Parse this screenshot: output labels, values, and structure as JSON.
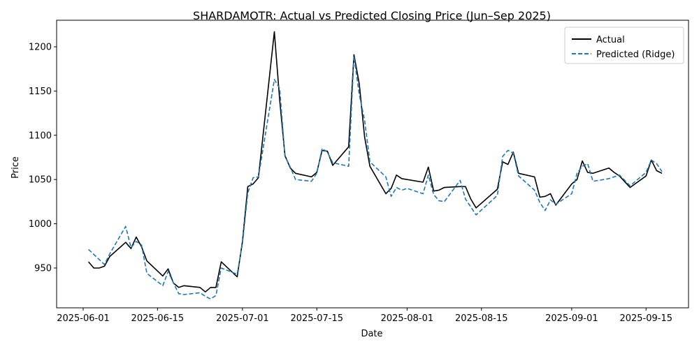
{
  "chart_data": {
    "type": "line",
    "title": "SHARDAMOTR: Actual vs Predicted Closing Price (Jun–Sep 2025)",
    "xlabel": "Date",
    "ylabel": "Price",
    "xlim": [
      "2025-05-27",
      "2025-09-23"
    ],
    "ylim": [
      905,
      1230
    ],
    "x_ticks": [
      "2025-06-01",
      "2025-06-15",
      "2025-07-01",
      "2025-07-15",
      "2025-08-01",
      "2025-08-15",
      "2025-09-01",
      "2025-09-15"
    ],
    "y_ticks": [
      950,
      1000,
      1050,
      1100,
      1150,
      1200
    ],
    "grid": false,
    "legend_position": "top-right",
    "series": [
      {
        "name": "Actual",
        "color": "#000000",
        "style": "solid",
        "points": [
          [
            "2025-06-02",
            957
          ],
          [
            "2025-06-03",
            950
          ],
          [
            "2025-06-04",
            950
          ],
          [
            "2025-06-05",
            952
          ],
          [
            "2025-06-06",
            963
          ],
          [
            "2025-06-09",
            979
          ],
          [
            "2025-06-10",
            972
          ],
          [
            "2025-06-11",
            985
          ],
          [
            "2025-06-12",
            974
          ],
          [
            "2025-06-13",
            958
          ],
          [
            "2025-06-16",
            941
          ],
          [
            "2025-06-17",
            949
          ],
          [
            "2025-06-18",
            933
          ],
          [
            "2025-06-19",
            928
          ],
          [
            "2025-06-20",
            930
          ],
          [
            "2025-06-23",
            928
          ],
          [
            "2025-06-24",
            923
          ],
          [
            "2025-06-25",
            928
          ],
          [
            "2025-06-26",
            928
          ],
          [
            "2025-06-27",
            957
          ],
          [
            "2025-06-30",
            940
          ],
          [
            "2025-07-01",
            980
          ],
          [
            "2025-07-02",
            1042
          ],
          [
            "2025-07-03",
            1045
          ],
          [
            "2025-07-04",
            1052
          ],
          [
            "2025-07-07",
            1217
          ],
          [
            "2025-07-08",
            1140
          ],
          [
            "2025-07-09",
            1077
          ],
          [
            "2025-07-10",
            1063
          ],
          [
            "2025-07-11",
            1057
          ],
          [
            "2025-07-14",
            1053
          ],
          [
            "2025-07-15",
            1058
          ],
          [
            "2025-07-16",
            1083
          ],
          [
            "2025-07-17",
            1082
          ],
          [
            "2025-07-18",
            1066
          ],
          [
            "2025-07-21",
            1087
          ],
          [
            "2025-07-22",
            1191
          ],
          [
            "2025-07-23",
            1158
          ],
          [
            "2025-07-24",
            1098
          ],
          [
            "2025-07-25",
            1065
          ],
          [
            "2025-07-28",
            1034
          ],
          [
            "2025-07-29",
            1040
          ],
          [
            "2025-07-30",
            1055
          ],
          [
            "2025-07-31",
            1051
          ],
          [
            "2025-08-04",
            1047
          ],
          [
            "2025-08-05",
            1064
          ],
          [
            "2025-08-06",
            1037
          ],
          [
            "2025-08-07",
            1038
          ],
          [
            "2025-08-08",
            1041
          ],
          [
            "2025-08-11",
            1042
          ],
          [
            "2025-08-12",
            1042
          ],
          [
            "2025-08-13",
            1028
          ],
          [
            "2025-08-14",
            1018
          ],
          [
            "2025-08-18",
            1039
          ],
          [
            "2025-08-19",
            1070
          ],
          [
            "2025-08-20",
            1067
          ],
          [
            "2025-08-21",
            1081
          ],
          [
            "2025-08-22",
            1057
          ],
          [
            "2025-08-25",
            1053
          ],
          [
            "2025-08-26",
            1030
          ],
          [
            "2025-08-27",
            1031
          ],
          [
            "2025-08-28",
            1034
          ],
          [
            "2025-08-29",
            1021
          ],
          [
            "2025-09-01",
            1045
          ],
          [
            "2025-09-02",
            1050
          ],
          [
            "2025-09-03",
            1071
          ],
          [
            "2025-09-04",
            1058
          ],
          [
            "2025-09-05",
            1057
          ],
          [
            "2025-09-08",
            1063
          ],
          [
            "2025-09-09",
            1058
          ],
          [
            "2025-09-10",
            1054
          ],
          [
            "2025-09-12",
            1041
          ],
          [
            "2025-09-15",
            1054
          ],
          [
            "2025-09-16",
            1072
          ],
          [
            "2025-09-17",
            1060
          ],
          [
            "2025-09-18",
            1057
          ]
        ]
      },
      {
        "name": "Predicted (Ridge)",
        "color": "#1f77b4",
        "style": "dashed",
        "points": [
          [
            "2025-06-02",
            971
          ],
          [
            "2025-06-05",
            954
          ],
          [
            "2025-06-06",
            966
          ],
          [
            "2025-06-09",
            997
          ],
          [
            "2025-06-10",
            973
          ],
          [
            "2025-06-11",
            980
          ],
          [
            "2025-06-12",
            976
          ],
          [
            "2025-06-13",
            944
          ],
          [
            "2025-06-16",
            930
          ],
          [
            "2025-06-17",
            946
          ],
          [
            "2025-06-18",
            933
          ],
          [
            "2025-06-19",
            921
          ],
          [
            "2025-06-20",
            920
          ],
          [
            "2025-06-23",
            922
          ],
          [
            "2025-06-24",
            918
          ],
          [
            "2025-06-25",
            915
          ],
          [
            "2025-06-26",
            919
          ],
          [
            "2025-06-27",
            950
          ],
          [
            "2025-06-30",
            943
          ],
          [
            "2025-07-01",
            978
          ],
          [
            "2025-07-02",
            1035
          ],
          [
            "2025-07-03",
            1052
          ],
          [
            "2025-07-04",
            1053
          ],
          [
            "2025-07-07",
            1163
          ],
          [
            "2025-07-08",
            1153
          ],
          [
            "2025-07-09",
            1076
          ],
          [
            "2025-07-10",
            1064
          ],
          [
            "2025-07-11",
            1050
          ],
          [
            "2025-07-14",
            1048
          ],
          [
            "2025-07-15",
            1057
          ],
          [
            "2025-07-16",
            1085
          ],
          [
            "2025-07-17",
            1081
          ],
          [
            "2025-07-18",
            1069
          ],
          [
            "2025-07-21",
            1065
          ],
          [
            "2025-07-22",
            1189
          ],
          [
            "2025-07-23",
            1146
          ],
          [
            "2025-07-24",
            1117
          ],
          [
            "2025-07-25",
            1070
          ],
          [
            "2025-07-28",
            1053
          ],
          [
            "2025-07-29",
            1031
          ],
          [
            "2025-07-30",
            1041
          ],
          [
            "2025-07-31",
            1038
          ],
          [
            "2025-08-01",
            1040
          ],
          [
            "2025-08-04",
            1034
          ],
          [
            "2025-08-05",
            1055
          ],
          [
            "2025-08-06",
            1033
          ],
          [
            "2025-08-07",
            1026
          ],
          [
            "2025-08-08",
            1025
          ],
          [
            "2025-08-11",
            1049
          ],
          [
            "2025-08-12",
            1028
          ],
          [
            "2025-08-14",
            1010
          ],
          [
            "2025-08-18",
            1032
          ],
          [
            "2025-08-19",
            1076
          ],
          [
            "2025-08-20",
            1083
          ],
          [
            "2025-08-21",
            1080
          ],
          [
            "2025-08-22",
            1054
          ],
          [
            "2025-08-25",
            1038
          ],
          [
            "2025-08-26",
            1024
          ],
          [
            "2025-08-27",
            1015
          ],
          [
            "2025-08-28",
            1027
          ],
          [
            "2025-08-29",
            1022
          ],
          [
            "2025-09-01",
            1034
          ],
          [
            "2025-09-02",
            1057
          ],
          [
            "2025-09-03",
            1065
          ],
          [
            "2025-09-04",
            1068
          ],
          [
            "2025-09-05",
            1048
          ],
          [
            "2025-09-08",
            1051
          ],
          [
            "2025-09-10",
            1055
          ],
          [
            "2025-09-12",
            1043
          ],
          [
            "2025-09-15",
            1058
          ],
          [
            "2025-09-16",
            1072
          ],
          [
            "2025-09-17",
            1068
          ],
          [
            "2025-09-18",
            1059
          ]
        ]
      }
    ]
  }
}
